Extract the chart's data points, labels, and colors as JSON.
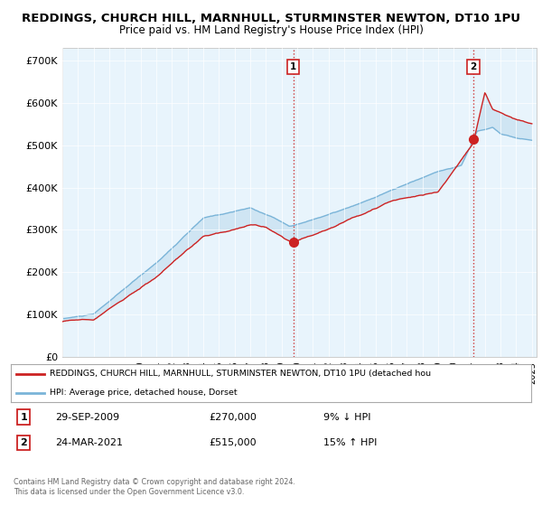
{
  "title1": "REDDINGS, CHURCH HILL, MARNHULL, STURMINSTER NEWTON, DT10 1PU",
  "title2": "Price paid vs. HM Land Registry's House Price Index (HPI)",
  "background_color": "#ffffff",
  "plot_bg_color": "#e8f0f8",
  "ylabel_ticks": [
    "£0",
    "£100K",
    "£200K",
    "£300K",
    "£400K",
    "£500K",
    "£600K",
    "£700K"
  ],
  "ytick_values": [
    0,
    100000,
    200000,
    300000,
    400000,
    500000,
    600000,
    700000
  ],
  "ylim": [
    0,
    730000
  ],
  "xlim_start": 1995.0,
  "xlim_end": 2025.3,
  "legend_line1": "REDDINGS, CHURCH HILL, MARNHULL, STURMINSTER NEWTON, DT10 1PU (detached hou",
  "legend_line2": "HPI: Average price, detached house, Dorset",
  "sale1_date": "29-SEP-2009",
  "sale1_price": "£270,000",
  "sale1_hpi": "9% ↓ HPI",
  "sale1_x": 2009.75,
  "sale1_y": 270000,
  "sale2_date": "24-MAR-2021",
  "sale2_price": "£515,000",
  "sale2_hpi": "15% ↑ HPI",
  "sale2_x": 2021.25,
  "sale2_y": 515000,
  "footer1": "Contains HM Land Registry data © Crown copyright and database right 2024.",
  "footer2": "This data is licensed under the Open Government Licence v3.0.",
  "hpi_color": "#7ab4d8",
  "sale_color": "#cc2222",
  "fill_color": "#c8dff0"
}
